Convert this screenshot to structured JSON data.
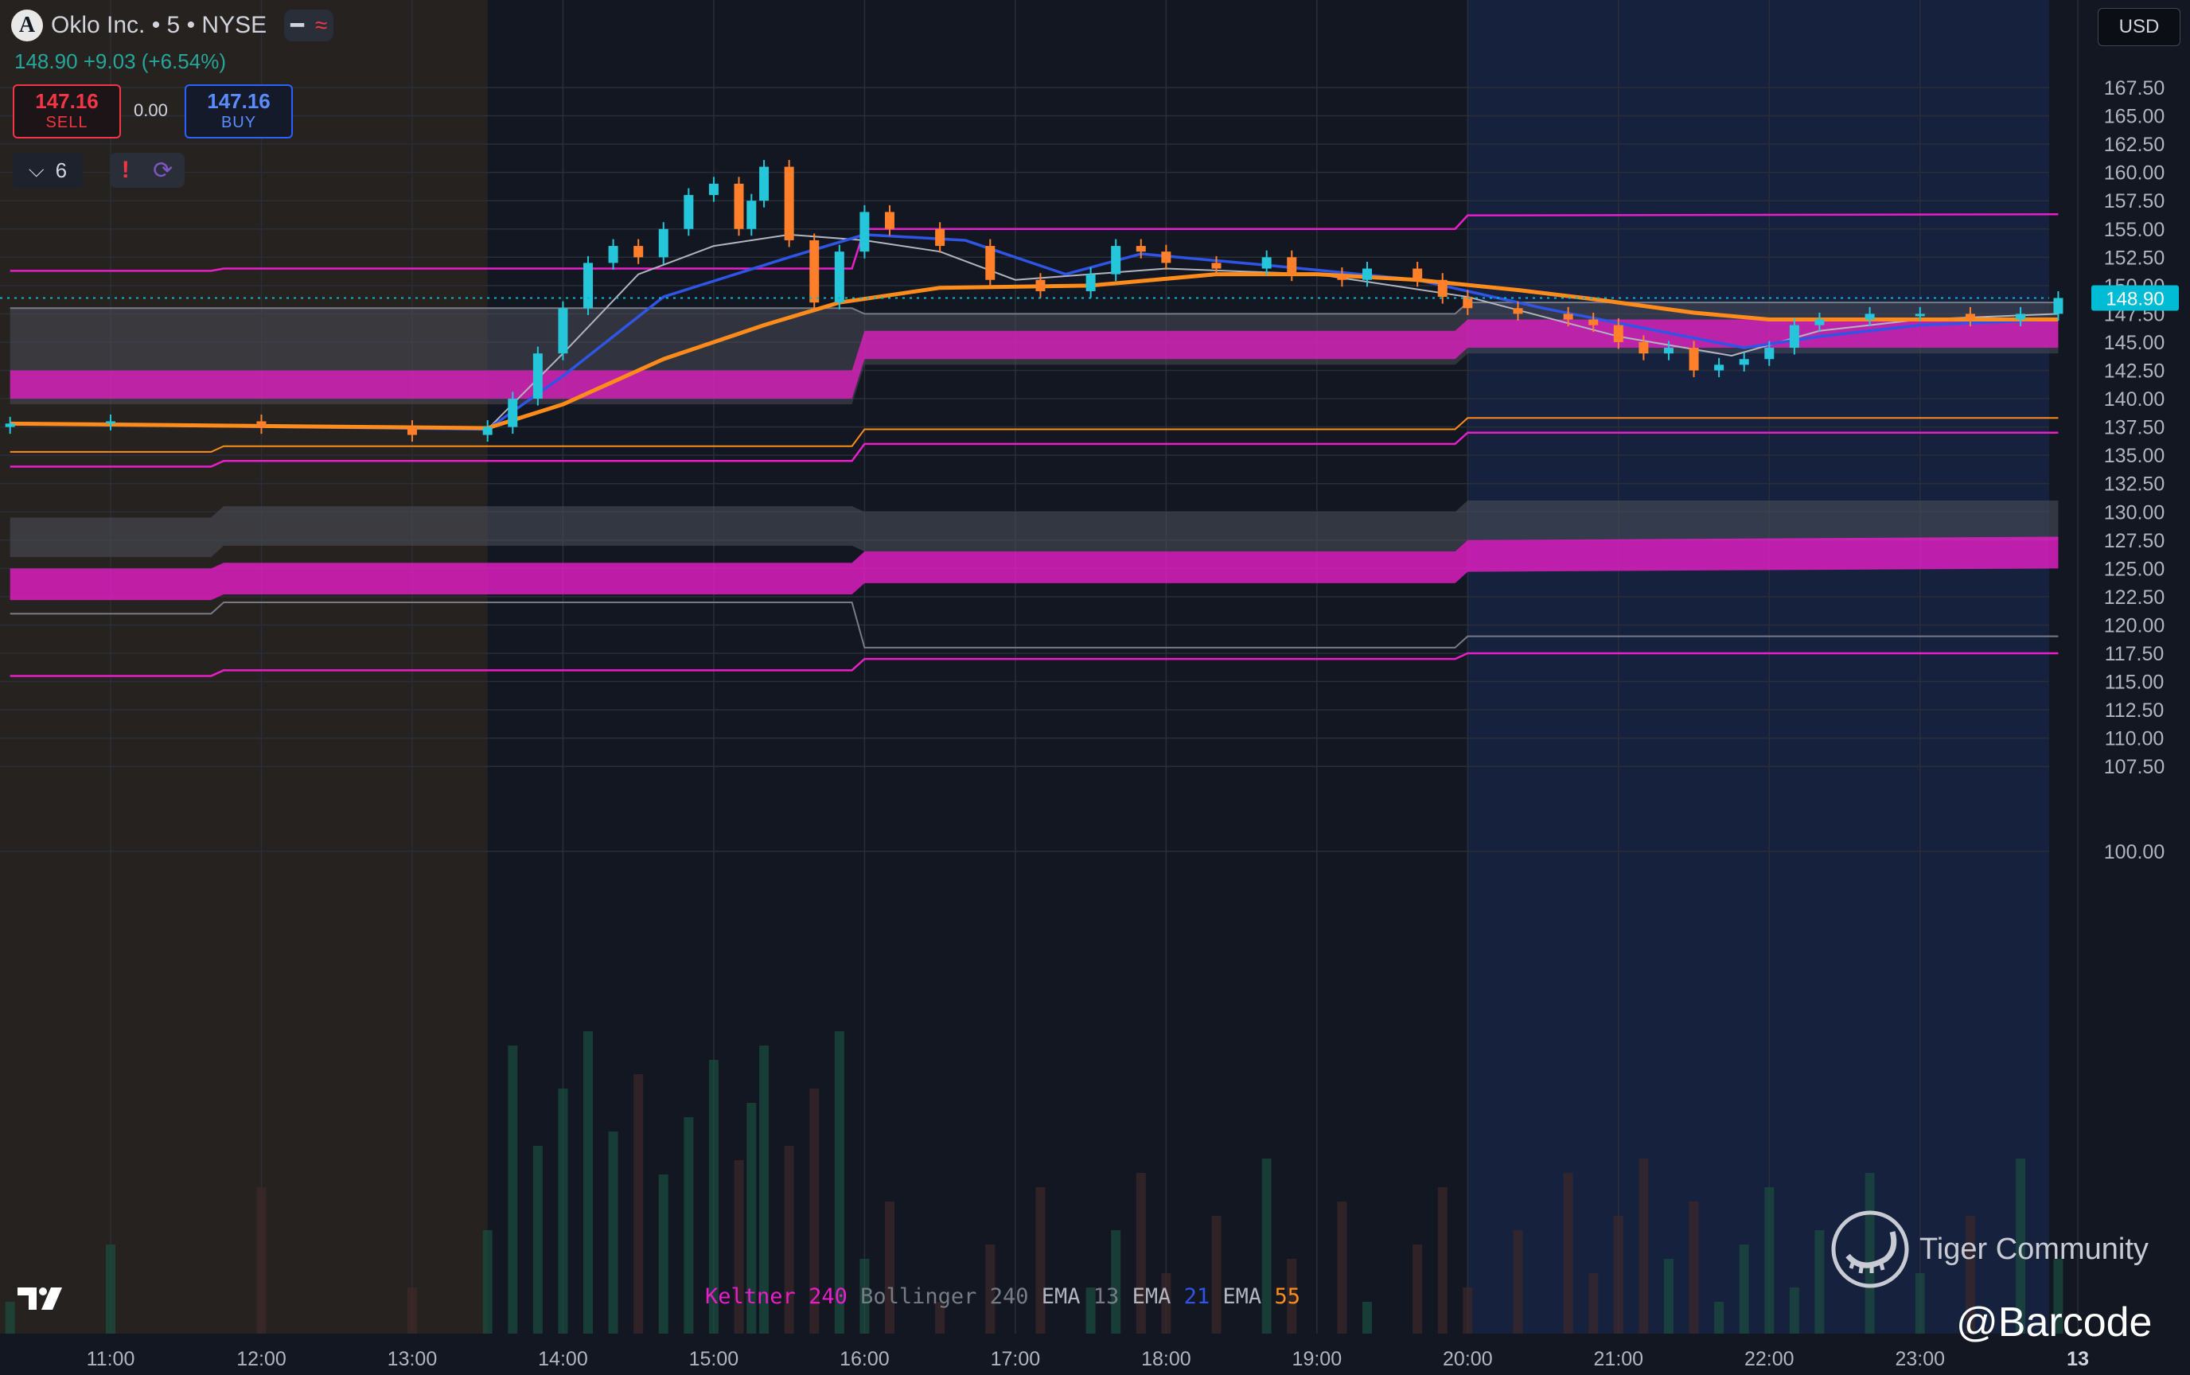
{
  "header": {
    "logo_letter": "A",
    "symbol_title": "Oklo Inc. • 5 • NYSE",
    "minus_glyph": "━",
    "wave_glyph": "≈",
    "price_change": "148.90 +9.03 (+6.54%)"
  },
  "trade": {
    "sell_price": "147.16",
    "sell_label": "SELL",
    "spread": "0.00",
    "buy_price": "147.16",
    "buy_label": "BUY"
  },
  "indicators_toggle": {
    "chevron": "⌵",
    "count": "6"
  },
  "alerts": {
    "warning_glyph": "!",
    "refresh_glyph": "⟳"
  },
  "currency": "USD",
  "legend": {
    "keltner": "Keltner",
    "keltner_len": "240",
    "bollinger": "Bollinger",
    "bollinger_len": "240",
    "ema1": "EMA",
    "ema1_len": "13",
    "ema2": "EMA",
    "ema2_len": "21",
    "ema3": "EMA",
    "ema3_len": "55"
  },
  "watermark": {
    "text": "Tiger Community",
    "handle": "@Barcode"
  },
  "colors": {
    "background": "#131722",
    "premarket_bg": "#2a2420",
    "afterhours_bg": "#16213e",
    "candle_up": "#26c6da",
    "candle_down": "#ff7f2a",
    "keltner": "#e91ec8",
    "bollinger": "#787b86",
    "ema13": "#b2b5be",
    "ema21": "#2f55e6",
    "ema55": "#ff8c1a",
    "last_price_tag": "#00bcd4"
  },
  "chart_data": {
    "type": "candlestick",
    "title": "Oklo Inc. • 5 • NYSE",
    "ylim": [
      97.5,
      170.0
    ],
    "y_ticks": [
      100.0,
      107.5,
      110.0,
      112.5,
      115.0,
      117.5,
      120.0,
      122.5,
      125.0,
      127.5,
      130.0,
      132.5,
      135.0,
      137.5,
      140.0,
      142.5,
      145.0,
      147.5,
      150.0,
      152.5,
      155.0,
      157.5,
      160.0,
      162.5,
      165.0,
      167.5
    ],
    "x_ticks": [
      "11:00",
      "12:00",
      "13:00",
      "14:00",
      "15:00",
      "16:00",
      "17:00",
      "18:00",
      "19:00",
      "20:00",
      "21:00",
      "22:00",
      "23:00",
      "13"
    ],
    "last_price": 148.9,
    "sessions": [
      {
        "name": "pre-market",
        "from": "10:20",
        "to": "13:30"
      },
      {
        "name": "after-hours",
        "from": "20:00",
        "to": "23:59"
      }
    ],
    "candles_sample": [
      {
        "t": "10:20",
        "c": 137.8
      },
      {
        "t": "11:00",
        "c": 138.0
      },
      {
        "t": "12:00",
        "c": 137.5
      },
      {
        "t": "13:00",
        "c": 136.8
      },
      {
        "t": "13:30",
        "c": 137.5
      },
      {
        "t": "13:40",
        "c": 140.0
      },
      {
        "t": "13:50",
        "c": 144.0
      },
      {
        "t": "14:00",
        "c": 148.0
      },
      {
        "t": "14:10",
        "c": 152.0
      },
      {
        "t": "14:20",
        "c": 153.5
      },
      {
        "t": "14:30",
        "c": 152.5
      },
      {
        "t": "14:40",
        "c": 155.0
      },
      {
        "t": "14:50",
        "c": 158.0
      },
      {
        "t": "15:00",
        "c": 159.0
      },
      {
        "t": "15:10",
        "c": 155.0
      },
      {
        "t": "15:15",
        "c": 157.5
      },
      {
        "t": "15:20",
        "c": 160.5
      },
      {
        "t": "15:30",
        "c": 154.0
      },
      {
        "t": "15:40",
        "c": 148.5
      },
      {
        "t": "15:50",
        "c": 153.0
      },
      {
        "t": "16:00",
        "c": 156.5
      },
      {
        "t": "16:10",
        "c": 155.0
      },
      {
        "t": "16:30",
        "c": 153.5
      },
      {
        "t": "16:50",
        "c": 150.5
      },
      {
        "t": "17:10",
        "c": 149.5
      },
      {
        "t": "17:30",
        "c": 151.0
      },
      {
        "t": "17:40",
        "c": 153.5
      },
      {
        "t": "17:50",
        "c": 153.0
      },
      {
        "t": "18:00",
        "c": 152.0
      },
      {
        "t": "18:20",
        "c": 151.5
      },
      {
        "t": "18:40",
        "c": 152.5
      },
      {
        "t": "18:50",
        "c": 151.0
      },
      {
        "t": "19:10",
        "c": 150.5
      },
      {
        "t": "19:20",
        "c": 151.5
      },
      {
        "t": "19:40",
        "c": 150.5
      },
      {
        "t": "19:50",
        "c": 149.0
      },
      {
        "t": "20:00",
        "c": 148.0
      },
      {
        "t": "20:20",
        "c": 147.5
      },
      {
        "t": "20:40",
        "c": 147.0
      },
      {
        "t": "20:50",
        "c": 146.5
      },
      {
        "t": "21:00",
        "c": 145.0
      },
      {
        "t": "21:10",
        "c": 144.0
      },
      {
        "t": "21:20",
        "c": 144.5
      },
      {
        "t": "21:30",
        "c": 142.5
      },
      {
        "t": "21:40",
        "c": 143.0
      },
      {
        "t": "21:50",
        "c": 143.5
      },
      {
        "t": "22:00",
        "c": 144.5
      },
      {
        "t": "22:10",
        "c": 146.5
      },
      {
        "t": "22:20",
        "c": 147.0
      },
      {
        "t": "22:40",
        "c": 147.5
      },
      {
        "t": "23:00",
        "c": 147.5
      },
      {
        "t": "23:20",
        "c": 147.0
      },
      {
        "t": "23:40",
        "c": 147.5
      },
      {
        "t": "23:55",
        "c": 148.9
      }
    ],
    "ema_lines": [
      {
        "name": "EMA 13",
        "points": [
          [
            "10:20",
            137.8
          ],
          [
            "13:30",
            137.3
          ],
          [
            "14:00",
            144.0
          ],
          [
            "14:30",
            151.0
          ],
          [
            "15:00",
            153.5
          ],
          [
            "15:30",
            154.5
          ],
          [
            "16:00",
            154.0
          ],
          [
            "16:30",
            153.0
          ],
          [
            "17:00",
            150.5
          ],
          [
            "17:30",
            151.0
          ],
          [
            "18:00",
            151.5
          ],
          [
            "19:00",
            151.0
          ],
          [
            "20:00",
            149.0
          ],
          [
            "21:00",
            145.5
          ],
          [
            "21:45",
            143.8
          ],
          [
            "22:20",
            146.0
          ],
          [
            "23:00",
            147.0
          ],
          [
            "23:55",
            147.5
          ]
        ]
      },
      {
        "name": "EMA 21",
        "points": [
          [
            "10:20",
            137.8
          ],
          [
            "13:30",
            137.3
          ],
          [
            "14:00",
            142.0
          ],
          [
            "14:40",
            149.0
          ],
          [
            "15:30",
            152.5
          ],
          [
            "16:00",
            154.5
          ],
          [
            "16:40",
            154.0
          ],
          [
            "17:20",
            151.0
          ],
          [
            "17:50",
            152.8
          ],
          [
            "18:40",
            151.8
          ],
          [
            "19:40",
            150.5
          ],
          [
            "20:30",
            148.0
          ],
          [
            "21:20",
            145.8
          ],
          [
            "21:50",
            144.5
          ],
          [
            "22:20",
            145.5
          ],
          [
            "23:00",
            146.5
          ],
          [
            "23:55",
            147.0
          ]
        ]
      },
      {
        "name": "EMA 55",
        "points": [
          [
            "10:20",
            137.8
          ],
          [
            "13:30",
            137.4
          ],
          [
            "14:00",
            139.5
          ],
          [
            "14:40",
            143.5
          ],
          [
            "15:20",
            146.5
          ],
          [
            "15:50",
            148.5
          ],
          [
            "16:30",
            149.8
          ],
          [
            "17:30",
            150.0
          ],
          [
            "18:20",
            151.0
          ],
          [
            "19:00",
            151.0
          ],
          [
            "19:40",
            150.5
          ],
          [
            "20:20",
            149.6
          ],
          [
            "20:50",
            148.8
          ],
          [
            "21:30",
            147.6
          ],
          [
            "22:00",
            147.0
          ],
          [
            "23:00",
            147.0
          ],
          [
            "23:55",
            147.0
          ]
        ]
      }
    ],
    "keltner_bands": [
      {
        "name": "upper",
        "segments": [
          [
            "10:20",
            151.3
          ],
          [
            "11:40",
            151.3
          ],
          [
            "11:45",
            151.5
          ],
          [
            "15:55",
            151.5
          ],
          [
            "16:00",
            155.0
          ],
          [
            "19:55",
            155.0
          ],
          [
            "20:00",
            156.2
          ],
          [
            "23:55",
            156.3
          ]
        ]
      },
      {
        "name": "mid_fill",
        "segments": [
          [
            "10:20",
            142.5
          ],
          [
            "15:55",
            142.5
          ],
          [
            "16:00",
            146.0
          ],
          [
            "19:55",
            146.0
          ],
          [
            "20:00",
            147.0
          ],
          [
            "23:55",
            147.0
          ]
        ]
      },
      {
        "name": "lower",
        "segments": [
          [
            "10:20",
            134.0
          ],
          [
            "11:40",
            134.0
          ],
          [
            "11:45",
            134.5
          ],
          [
            "15:55",
            134.5
          ],
          [
            "16:00",
            136.0
          ],
          [
            "19:55",
            136.0
          ],
          [
            "20:00",
            137.0
          ],
          [
            "23:55",
            137.0
          ]
        ]
      },
      {
        "name": "lower_fill",
        "segments": [
          [
            "10:20",
            125.0
          ],
          [
            "11:40",
            125.0
          ],
          [
            "11:45",
            125.5
          ],
          [
            "15:55",
            125.5
          ],
          [
            "16:00",
            126.5
          ],
          [
            "19:55",
            126.5
          ],
          [
            "20:00",
            127.5
          ],
          [
            "23:55",
            127.8
          ]
        ]
      },
      {
        "name": "bottom",
        "segments": [
          [
            "10:20",
            115.5
          ],
          [
            "11:40",
            115.5
          ],
          [
            "11:45",
            116.0
          ],
          [
            "15:55",
            116.0
          ],
          [
            "16:00",
            117.0
          ],
          [
            "19:55",
            117.0
          ],
          [
            "20:00",
            117.5
          ],
          [
            "23:55",
            117.5
          ]
        ]
      }
    ],
    "bollinger_bands": [
      {
        "name": "upper",
        "segments": [
          [
            "10:20",
            148.0
          ],
          [
            "15:55",
            148.0
          ],
          [
            "16:00",
            147.5
          ],
          [
            "19:55",
            147.5
          ],
          [
            "20:00",
            148.5
          ],
          [
            "23:55",
            148.5
          ]
        ]
      },
      {
        "name": "lower",
        "segments": [
          [
            "10:20",
            139.5
          ],
          [
            "15:55",
            139.5
          ],
          [
            "16:00",
            143.0
          ],
          [
            "19:55",
            143.0
          ],
          [
            "20:00",
            144.0
          ],
          [
            "23:55",
            144.0
          ]
        ]
      },
      {
        "name": "lower2",
        "segments": [
          [
            "10:20",
            129.5
          ],
          [
            "11:40",
            129.5
          ],
          [
            "11:45",
            130.5
          ],
          [
            "15:55",
            130.5
          ],
          [
            "16:00",
            130.0
          ],
          [
            "19:55",
            130.0
          ],
          [
            "20:00",
            131.0
          ],
          [
            "23:55",
            131.0
          ]
        ]
      },
      {
        "name": "bottom",
        "segments": [
          [
            "10:20",
            121.0
          ],
          [
            "11:40",
            121.0
          ],
          [
            "11:45",
            122.0
          ],
          [
            "15:55",
            122.0
          ],
          [
            "16:00",
            118.0
          ],
          [
            "19:55",
            118.0
          ],
          [
            "20:00",
            119.0
          ],
          [
            "23:55",
            119.0
          ]
        ]
      }
    ]
  }
}
